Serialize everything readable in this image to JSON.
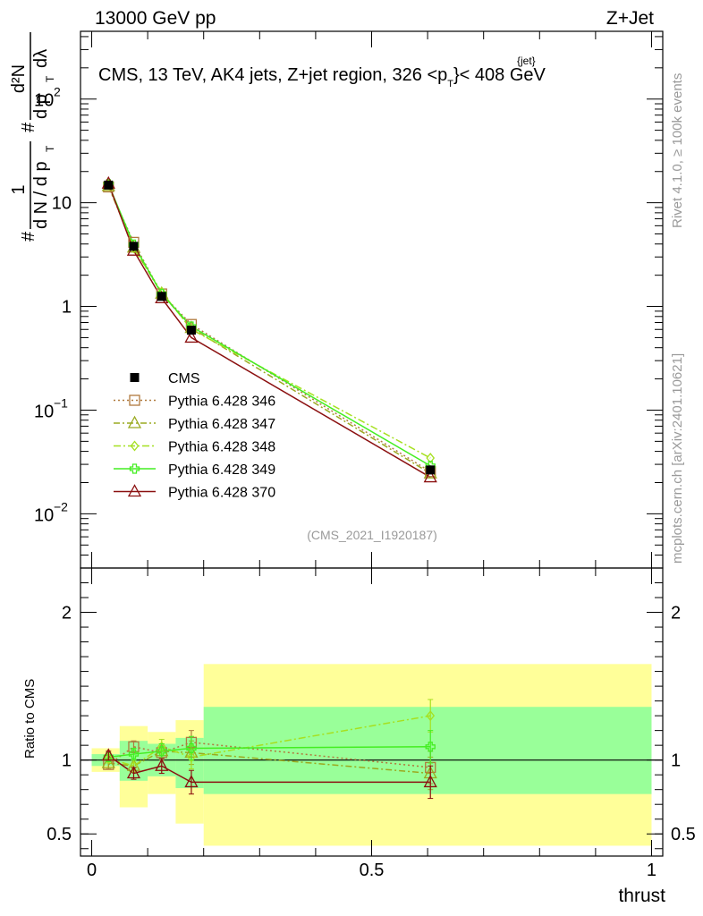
{
  "header": {
    "left_label": "13000 GeV pp",
    "right_label": "Z+Jet"
  },
  "side_labels": {
    "rivet": "Rivet 4.1.0, ≥ 100k events",
    "mcplots": "mcplots.cern.ch [arXiv:2401.10621]"
  },
  "chart_data": [
    {
      "type": "line",
      "scale": "log",
      "title": "CMS, 13 TeV, AK4 jets, Z+jet region, 326 <p_T^{jet}< 408 GeV",
      "title_parts": {
        "main": "CMS, 13 TeV, AK4 jets, Z+jet region, 326 <p",
        "sub": "T",
        "sup": "{jet}",
        "tail": "}< 408 GeV"
      },
      "ylabel": "1/(dN/dp_T) d²N/(dp_T dλ)",
      "ylabel_parts": {
        "hash": "#",
        "one": "1",
        "dN": "d N / d p",
        "T": "T",
        "d2N": "d²N",
        "dpT": "d p",
        "dl": "dλ"
      },
      "ylim": [
        0.003,
        450
      ],
      "y_ticks": [
        {
          "value": 0.01,
          "base": "10",
          "exp": "−2"
        },
        {
          "value": 0.1,
          "base": "10",
          "exp": "−1"
        },
        {
          "value": 1,
          "label": "1"
        },
        {
          "value": 10,
          "label": "10"
        },
        {
          "value": 100,
          "base": "10",
          "exp": "2"
        }
      ],
      "analysis_tag": "(CMS_2021_I1920187)",
      "x": [
        0.03,
        0.075,
        0.125,
        0.178,
        0.605
      ],
      "series": [
        {
          "name": "CMS",
          "color": "#000000",
          "marker": "square-filled",
          "dash": "none",
          "values": [
            14.8,
            3.8,
            1.25,
            0.59,
            0.0265
          ],
          "errors": [
            0.5,
            0.15,
            0.06,
            0.03,
            0.0025
          ]
        },
        {
          "name": "Pythia 6.428 346",
          "color": "#b07a3e",
          "marker": "square-open",
          "dash": "2,3",
          "values": [
            14.2,
            4.15,
            1.32,
            0.67,
            0.0255
          ]
        },
        {
          "name": "Pythia 6.428 347",
          "color": "#9aaa20",
          "marker": "triangle-open",
          "dash": "7,3,2,3",
          "values": [
            14.5,
            3.7,
            1.33,
            0.62,
            0.0245
          ]
        },
        {
          "name": "Pythia 6.428 348",
          "color": "#a6e020",
          "marker": "diamond-open",
          "dash": "8,3,2,3",
          "values": [
            15.0,
            3.65,
            1.38,
            0.6,
            0.0345
          ]
        },
        {
          "name": "Pythia 6.428 349",
          "color": "#44ee22",
          "marker": "cross-open",
          "dash": "none",
          "values": [
            15.1,
            3.95,
            1.32,
            0.64,
            0.029
          ]
        },
        {
          "name": "Pythia 6.428 370",
          "color": "#8b1010",
          "marker": "triangle-open",
          "dash": "none",
          "values": [
            15.3,
            3.45,
            1.2,
            0.5,
            0.0225
          ]
        }
      ]
    },
    {
      "type": "line",
      "title": "",
      "ylabel": "Ratio to CMS",
      "xlabel": "thrust",
      "xlim": [
        -0.02,
        1.02
      ],
      "ylim": [
        0.35,
        2.3
      ],
      "x_ticks": [
        {
          "value": 0,
          "label": "0"
        },
        {
          "value": 0.5,
          "label": "0.5"
        },
        {
          "value": 1,
          "label": "1"
        }
      ],
      "y_ticks": [
        {
          "value": 0.5,
          "label": "0.5"
        },
        {
          "value": 1,
          "label": "1"
        },
        {
          "value": 2,
          "label": "2"
        }
      ],
      "bins": [
        {
          "lo": 0.0,
          "hi": 0.05,
          "green": [
            0.96,
            1.04
          ],
          "yellow": [
            0.92,
            1.08
          ]
        },
        {
          "lo": 0.05,
          "hi": 0.1,
          "green": [
            0.86,
            1.13
          ],
          "yellow": [
            0.68,
            1.23
          ]
        },
        {
          "lo": 0.1,
          "hi": 0.15,
          "green": [
            0.89,
            1.11
          ],
          "yellow": [
            0.77,
            1.19
          ]
        },
        {
          "lo": 0.15,
          "hi": 0.2,
          "green": [
            0.81,
            1.15
          ],
          "yellow": [
            0.57,
            1.27
          ]
        },
        {
          "lo": 0.2,
          "hi": 1.0,
          "green": [
            0.77,
            1.36
          ],
          "yellow": [
            0.42,
            1.65
          ]
        }
      ],
      "x": [
        0.03,
        0.075,
        0.125,
        0.178,
        0.605
      ],
      "series": [
        {
          "name": "Pythia 6.428 346",
          "values": [
            0.97,
            1.09,
            1.05,
            1.12,
            0.95
          ]
        },
        {
          "name": "Pythia 6.428 347",
          "values": [
            0.98,
            0.96,
            1.06,
            1.05,
            0.91
          ]
        },
        {
          "name": "Pythia 6.428 348",
          "values": [
            1.01,
            0.96,
            1.09,
            1.02,
            1.3
          ]
        },
        {
          "name": "Pythia 6.428 349",
          "values": [
            1.02,
            1.04,
            1.06,
            1.08,
            1.09
          ]
        },
        {
          "name": "Pythia 6.428 370",
          "values": [
            1.03,
            0.91,
            0.96,
            0.85,
            0.85
          ]
        }
      ],
      "ratio_errors": [
        0.03,
        0.04,
        0.05,
        0.08,
        0.11
      ]
    }
  ]
}
